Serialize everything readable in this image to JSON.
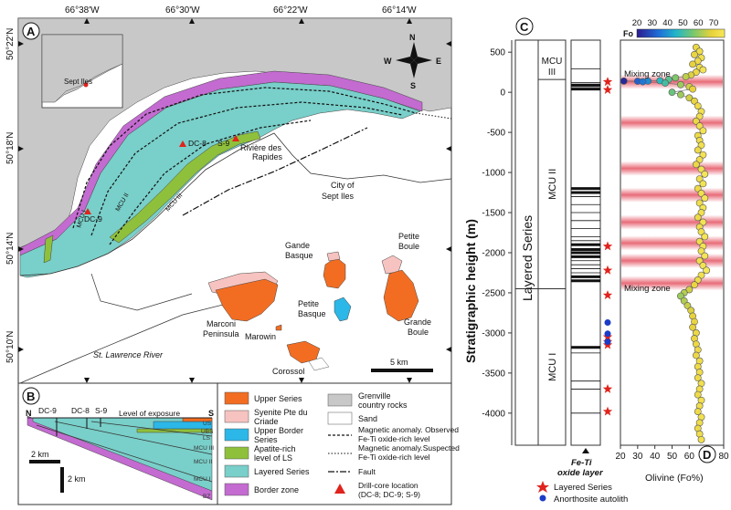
{
  "panels": {
    "a": "A",
    "b": "B",
    "c": "C",
    "d": "D"
  },
  "map": {
    "lon_labels": [
      "66°38'W",
      "66°30'W",
      "66°22'W",
      "66°14'W"
    ],
    "lat_labels": [
      "50°22'N",
      "50°18'N",
      "50°14'N",
      "50°10'N"
    ],
    "places": {
      "sept_iles_inset": "Sept Iles",
      "dc8": "DC-8",
      "s9": "S-9",
      "dc9": "DC-9",
      "riviere_line1": "Rivière des",
      "riviere_line2": "Rapides",
      "city_line1": "City of",
      "city_line2": "Sept Iles",
      "gande_basque_line1": "Gande",
      "gande_basque_line2": "Basque",
      "petite_boule_line1": "Petite",
      "petite_boule_line2": "Boule",
      "petite_basque_line1": "Petite",
      "petite_basque_line2": "Basque",
      "grande_boule_line1": "Grande",
      "grande_boule_line2": "Boule",
      "marconi_line1": "Marconi",
      "marconi_line2": "Peninsula",
      "marowin": "Marowin",
      "corossol": "Corossol",
      "river": "St. Lawrence River"
    },
    "unit_labels": {
      "mcu1": "MCU I",
      "mcu2": "MCU II",
      "mcu3": "MCU III"
    },
    "compass": {
      "n": "N",
      "s": "S",
      "e": "E",
      "w": "W"
    },
    "scale": "5 km",
    "colors": {
      "country": "#c8c8c8",
      "layered": "#79cfc9",
      "border": "#c36bd0",
      "apatite": "#8fc03c",
      "upper": "#f26d22",
      "syenite": "#f7c3c0",
      "upper_border": "#2bb7e8"
    }
  },
  "section": {
    "n": "N",
    "s": "S",
    "dc9": "DC-9",
    "dc8": "DC-8",
    "s9": "S-9",
    "exposure": "Level of exposure",
    "scale_h": "2 km",
    "scale_v": "2 km",
    "layer_labels": [
      "US",
      "UBS",
      "LS",
      "MCU III",
      "MCU II",
      "MCU I",
      "BZ"
    ]
  },
  "legend": {
    "items": [
      {
        "key": "upper",
        "label1": "Upper Series",
        "label2": ""
      },
      {
        "key": "syenite",
        "label1": "Syenite Pte du",
        "label2": "Criade"
      },
      {
        "key": "upper_border",
        "label1": "Upper Border",
        "label2": "Series"
      },
      {
        "key": "apatite",
        "label1": "Apatite-rich",
        "label2": "level of LS"
      },
      {
        "key": "layered",
        "label1": "Layered Series",
        "label2": ""
      },
      {
        "key": "border",
        "label1": "Border zone",
        "label2": ""
      }
    ],
    "right": {
      "grenville1": "Grenville",
      "grenville2": "country rocks",
      "sand": "Sand",
      "mag_obs1": "Magnetic anomaly. Observed",
      "mag_obs2": "Fe-Ti oxide-rich level",
      "mag_sus1": "Magnetic anomaly.Suspected",
      "mag_sus2": "Fe-Ti oxide-rich level",
      "fault": "Fault",
      "drill1": "Drill-core location",
      "drill2": "(DC-8; DC-9; S-9)"
    }
  },
  "column": {
    "ylabel": "Stratigraphic height (m)",
    "yticks": [
      500,
      0,
      -500,
      -1000,
      -1500,
      -2000,
      -2500,
      -3000,
      -3500,
      -4000
    ],
    "ylim": [
      -4400,
      650
    ],
    "series_label": "Layered Series",
    "units": [
      {
        "label": "MCU III",
        "top": 500,
        "bottom": 160
      },
      {
        "label": "MCU II",
        "top": 160,
        "bottom": -2450
      },
      {
        "label": "MCU I",
        "top": -2450,
        "bottom": -4400
      }
    ],
    "oxide_title1": "Fe-Ti",
    "oxide_title2": "oxide layer",
    "oxide_layers_thick": [
      90,
      40,
      -1200,
      -1250,
      -1900,
      -1960,
      -2000,
      -2050,
      -2300,
      -2350,
      -3180
    ],
    "oxide_layers_thin": [
      290,
      120,
      70,
      -1300,
      -1400,
      -1500,
      -1600,
      -1700,
      -1800,
      -1850,
      -2100,
      -2150,
      -2200,
      -2250,
      -3250,
      -3600,
      -3700,
      -4000
    ],
    "layered_series_stars": [
      130,
      30,
      -1920,
      -2220,
      -2530,
      -3050,
      -3110,
      -3150,
      -3700,
      -3980
    ],
    "anorthosite_dots": [
      -2870,
      -3010,
      -3110
    ],
    "legend_star": "Layered Series",
    "legend_dot": "Anorthosite autolith"
  },
  "chart_data": {
    "type": "scatter",
    "xlabel": "Olivine (Fo%)",
    "xlim": [
      20,
      80
    ],
    "xticks": [
      20,
      30,
      40,
      50,
      60,
      70,
      80
    ],
    "ylim": [
      -4400,
      650
    ],
    "colorbar": {
      "label": "Fo",
      "ticks": [
        20,
        30,
        40,
        50,
        60,
        70
      ],
      "range": [
        20,
        70
      ]
    },
    "annotations": [
      {
        "text": "Mixing zone",
        "y": 240
      },
      {
        "text": "Mixing zone",
        "y": -2430
      }
    ],
    "mixing_bands": [
      130,
      -380,
      -950,
      -1280,
      -1620,
      -1880,
      -2100,
      -2380
    ],
    "points": [
      {
        "x": 64,
        "y": 560
      },
      {
        "x": 66,
        "y": 510
      },
      {
        "x": 63,
        "y": 470
      },
      {
        "x": 67,
        "y": 430
      },
      {
        "x": 65,
        "y": 390
      },
      {
        "x": 62,
        "y": 350
      },
      {
        "x": 66,
        "y": 310
      },
      {
        "x": 68,
        "y": 280
      },
      {
        "x": 64,
        "y": 250
      },
      {
        "x": 61,
        "y": 215
      },
      {
        "x": 58,
        "y": 195
      },
      {
        "x": 52,
        "y": 180
      },
      {
        "x": 48,
        "y": 160
      },
      {
        "x": 43,
        "y": 145
      },
      {
        "x": 36,
        "y": 140
      },
      {
        "x": 30,
        "y": 138
      },
      {
        "x": 22,
        "y": 140
      },
      {
        "x": 33,
        "y": 132
      },
      {
        "x": 46,
        "y": 115
      },
      {
        "x": 55,
        "y": 95
      },
      {
        "x": 60,
        "y": 70
      },
      {
        "x": 62,
        "y": 40
      },
      {
        "x": 50,
        "y": 0
      },
      {
        "x": 55,
        "y": -30
      },
      {
        "x": 60,
        "y": -70
      },
      {
        "x": 63,
        "y": -110
      },
      {
        "x": 65,
        "y": -170
      },
      {
        "x": 67,
        "y": -240
      },
      {
        "x": 66,
        "y": -300
      },
      {
        "x": 64,
        "y": -360
      },
      {
        "x": 66,
        "y": -420
      },
      {
        "x": 68,
        "y": -480
      },
      {
        "x": 65,
        "y": -540
      },
      {
        "x": 66,
        "y": -600
      },
      {
        "x": 67,
        "y": -660
      },
      {
        "x": 65,
        "y": -720
      },
      {
        "x": 68,
        "y": -780
      },
      {
        "x": 66,
        "y": -840
      },
      {
        "x": 64,
        "y": -900
      },
      {
        "x": 67,
        "y": -960
      },
      {
        "x": 69,
        "y": -1020
      },
      {
        "x": 66,
        "y": -1080
      },
      {
        "x": 68,
        "y": -1140
      },
      {
        "x": 65,
        "y": -1200
      },
      {
        "x": 67,
        "y": -1260
      },
      {
        "x": 69,
        "y": -1320
      },
      {
        "x": 66,
        "y": -1380
      },
      {
        "x": 68,
        "y": -1440
      },
      {
        "x": 67,
        "y": -1500
      },
      {
        "x": 65,
        "y": -1560
      },
      {
        "x": 68,
        "y": -1620
      },
      {
        "x": 66,
        "y": -1680
      },
      {
        "x": 67,
        "y": -1740
      },
      {
        "x": 69,
        "y": -1800
      },
      {
        "x": 66,
        "y": -1860
      },
      {
        "x": 68,
        "y": -1920
      },
      {
        "x": 67,
        "y": -1980
      },
      {
        "x": 69,
        "y": -2040
      },
      {
        "x": 66,
        "y": -2100
      },
      {
        "x": 68,
        "y": -2160
      },
      {
        "x": 70,
        "y": -2220
      },
      {
        "x": 67,
        "y": -2280
      },
      {
        "x": 65,
        "y": -2340
      },
      {
        "x": 63,
        "y": -2400
      },
      {
        "x": 60,
        "y": -2460
      },
      {
        "x": 57,
        "y": -2500
      },
      {
        "x": 55,
        "y": -2540
      },
      {
        "x": 57,
        "y": -2600
      },
      {
        "x": 59,
        "y": -2660
      },
      {
        "x": 61,
        "y": -2720
      },
      {
        "x": 62,
        "y": -2790
      },
      {
        "x": 63,
        "y": -2860
      },
      {
        "x": 62,
        "y": -2930
      },
      {
        "x": 64,
        "y": -3000
      },
      {
        "x": 63,
        "y": -3070
      },
      {
        "x": 64,
        "y": -3140
      },
      {
        "x": 65,
        "y": -3210
      },
      {
        "x": 64,
        "y": -3280
      },
      {
        "x": 66,
        "y": -3350
      },
      {
        "x": 65,
        "y": -3420
      },
      {
        "x": 66,
        "y": -3490
      },
      {
        "x": 65,
        "y": -3560
      },
      {
        "x": 67,
        "y": -3630
      },
      {
        "x": 66,
        "y": -3700
      },
      {
        "x": 65,
        "y": -3770
      },
      {
        "x": 67,
        "y": -3840
      },
      {
        "x": 66,
        "y": -3910
      },
      {
        "x": 65,
        "y": -3980
      },
      {
        "x": 67,
        "y": -4050
      },
      {
        "x": 66,
        "y": -4120
      },
      {
        "x": 65,
        "y": -4190
      },
      {
        "x": 66,
        "y": -4260
      },
      {
        "x": 67,
        "y": -4330
      }
    ]
  }
}
